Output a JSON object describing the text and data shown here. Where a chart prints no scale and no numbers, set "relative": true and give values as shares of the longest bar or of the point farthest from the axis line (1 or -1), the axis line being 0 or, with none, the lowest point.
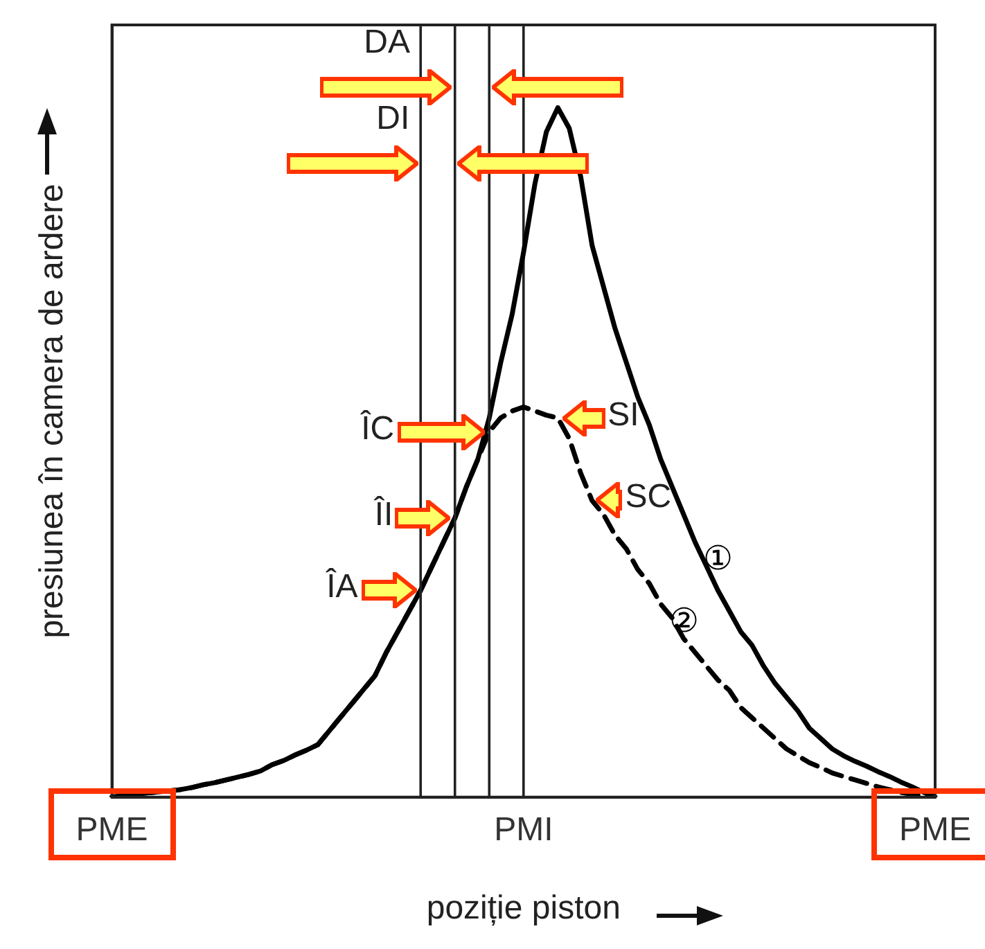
{
  "chart_data": {
    "type": "line",
    "relative": true,
    "xlabel": "poziție piston",
    "ylabel": "presiunea în camera de ardere",
    "categories": [
      "PME",
      null,
      null,
      null,
      null,
      null,
      null,
      null,
      null,
      null,
      null,
      null,
      null,
      null,
      null,
      null,
      null,
      null,
      null,
      null,
      null,
      null,
      null,
      null,
      null,
      null,
      null,
      null,
      null,
      null,
      null,
      null,
      null,
      null,
      null,
      null,
      "PMI",
      null,
      null,
      null,
      null,
      null,
      null,
      null,
      null,
      null,
      null,
      null,
      null,
      null,
      null,
      null,
      null,
      null,
      null,
      null,
      null,
      null,
      null,
      null,
      null,
      null,
      null,
      null,
      null,
      null,
      null,
      null,
      null,
      null,
      null,
      null,
      "PME"
    ],
    "series": [
      {
        "name": "①",
        "color": "#000000",
        "line_style": "solid",
        "values": [
          0,
          0.002,
          0.004,
          0.006,
          0.0075,
          0.009,
          0.011,
          0.014,
          0.018,
          0.021,
          0.025,
          0.029,
          0.033,
          0.038,
          0.047,
          0.053,
          0.061,
          0.068,
          0.076,
          0.096,
          0.116,
          0.136,
          0.156,
          0.176,
          0.21,
          0.24,
          0.27,
          0.3,
          0.335,
          0.37,
          0.405,
          0.45,
          0.49,
          0.55,
          0.63,
          0.7,
          0.79,
          0.89,
          0.965,
          1,
          0.97,
          0.9,
          0.8,
          0.74,
          0.68,
          0.63,
          0.58,
          0.54,
          0.49,
          0.45,
          0.41,
          0.37,
          0.335,
          0.3,
          0.27,
          0.24,
          0.22,
          0.19,
          0.165,
          0.145,
          0.125,
          0.1,
          0.085,
          0.07,
          0.06,
          0.052,
          0.045,
          0.037,
          0.03,
          0.022,
          0.015,
          0.007,
          0
        ]
      },
      {
        "name": "②",
        "color": "#000000",
        "line_style": "dashed",
        "values": [
          0,
          0.002,
          0.004,
          0.006,
          0.0075,
          0.009,
          0.011,
          0.014,
          0.018,
          0.021,
          0.025,
          0.029,
          0.033,
          0.038,
          0.047,
          0.053,
          0.061,
          0.068,
          0.076,
          0.096,
          0.116,
          0.136,
          0.156,
          0.176,
          0.21,
          0.24,
          0.27,
          0.3,
          0.335,
          0.37,
          0.405,
          0.45,
          0.49,
          0.53,
          0.55,
          0.56,
          0.566,
          0.56,
          0.554,
          0.55,
          0.52,
          0.47,
          0.43,
          0.41,
          0.38,
          0.36,
          0.33,
          0.31,
          0.28,
          0.26,
          0.23,
          0.21,
          0.19,
          0.17,
          0.155,
          0.13,
          0.115,
          0.1,
          0.085,
          0.07,
          0.06,
          0.05,
          0.043,
          0.035,
          0.03,
          0.025,
          0.02,
          0.015,
          0.011,
          0.007,
          0.004,
          0.002,
          0
        ]
      }
    ],
    "annotations": [
      "DA",
      "DI",
      "ÎC",
      "ÎI",
      "ÎA",
      "SI",
      "SC"
    ],
    "grid": "x",
    "legend": false,
    "marker": "none"
  }
}
